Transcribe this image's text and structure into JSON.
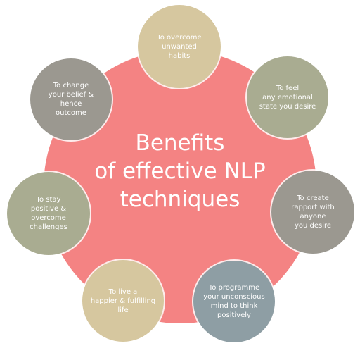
{
  "colors": {
    "center": "#f48383",
    "tan": "#d6c79f",
    "olive": "#a9ac91",
    "gray": "#9b9890",
    "steel": "#8e9ea4"
  },
  "center": {
    "title_lines": [
      "Benefits",
      "of effective NLP",
      "techniques"
    ]
  },
  "satellites": [
    {
      "id": "overcome-habits",
      "color": "tan",
      "lines": [
        "To overcome",
        "unwanted",
        "habits"
      ]
    },
    {
      "id": "feel-emotional-state",
      "color": "olive",
      "lines": [
        "To feel",
        "any emotional",
        "state you desire"
      ]
    },
    {
      "id": "create-rapport",
      "color": "gray",
      "lines": [
        "To create",
        "rapport with anyone",
        "you desire"
      ]
    },
    {
      "id": "programme-mind",
      "color": "steel",
      "lines": [
        "To programme",
        "your unconscious",
        "mind to think",
        "positively"
      ]
    },
    {
      "id": "live-happier",
      "color": "tan",
      "lines": [
        "To live a",
        "happier & fulfilling",
        "life"
      ]
    },
    {
      "id": "stay-positive",
      "color": "olive",
      "lines": [
        "To stay",
        "positive & overcome",
        "challenges"
      ]
    },
    {
      "id": "change-belief",
      "color": "gray",
      "lines": [
        "To change",
        "your belief & hence",
        "outcome"
      ]
    }
  ]
}
